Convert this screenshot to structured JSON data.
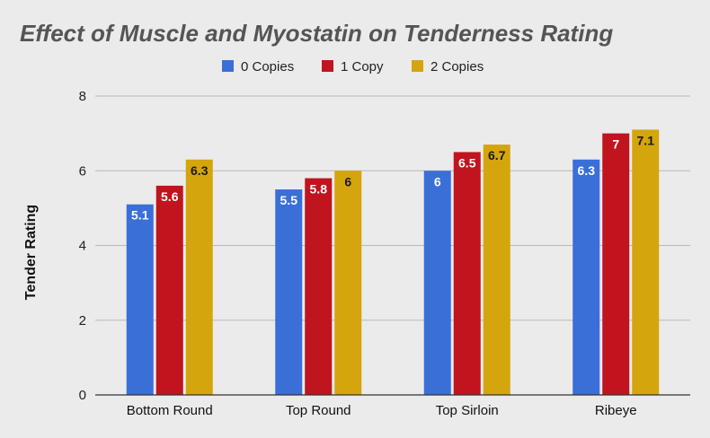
{
  "chart_data": {
    "type": "bar",
    "title": "Effect of Muscle and Myostatin on Tenderness Rating",
    "xlabel": "",
    "ylabel": "Tender Rating",
    "ylim": [
      0,
      8
    ],
    "yticks": [
      "0",
      "2",
      "4",
      "6",
      "8"
    ],
    "categories": [
      "Bottom Round",
      "Top Round",
      "Top Sirloin",
      "Ribeye"
    ],
    "series": [
      {
        "name": "0 Copies",
        "color": "#3a6fd8",
        "label_color": "#ffffff",
        "values": [
          5.1,
          5.5,
          6,
          6.3
        ]
      },
      {
        "name": "1 Copy",
        "color": "#c0141e",
        "label_color": "#ffffff",
        "values": [
          5.6,
          5.8,
          6.5,
          7
        ]
      },
      {
        "name": "2 Copies",
        "color": "#d4a50c",
        "label_color": "#1a1a1a",
        "values": [
          6.3,
          6,
          6.7,
          7.1
        ]
      }
    ],
    "grid": true,
    "legend_position": "top-center",
    "data_labels": true
  }
}
